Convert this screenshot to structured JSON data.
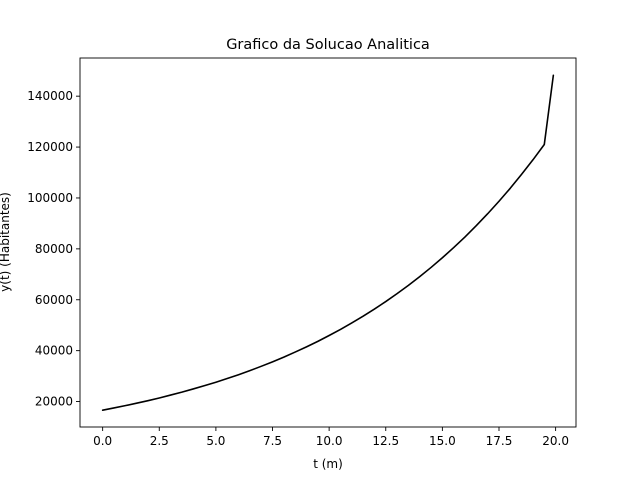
{
  "chart_data": {
    "type": "line",
    "title": "Grafico da Solucao Analitica",
    "xlabel": "t (m)",
    "ylabel": "y(t) (Habitantes)",
    "xlim": [
      -1.0,
      20.9
    ],
    "ylim": [
      10000,
      155000
    ],
    "xticks": [
      0.0,
      2.5,
      5.0,
      7.5,
      10.0,
      12.5,
      15.0,
      17.5,
      20.0
    ],
    "xtick_labels": [
      "0.0",
      "2.5",
      "5.0",
      "7.5",
      "10.0",
      "12.5",
      "15.0",
      "17.5",
      "20.0"
    ],
    "yticks": [
      20000,
      40000,
      60000,
      80000,
      100000,
      120000,
      140000
    ],
    "ytick_labels": [
      "20000",
      "40000",
      "60000",
      "80000",
      "100000",
      "120000",
      "140000"
    ],
    "grid": false,
    "colors": {
      "line": "#000000",
      "axes": "#000000",
      "background": "#ffffff"
    },
    "series": [
      {
        "x": [
          0.0,
          0.5,
          1.0,
          1.5,
          2.0,
          2.5,
          3.0,
          3.5,
          4.0,
          4.5,
          5.0,
          5.5,
          6.0,
          6.5,
          7.0,
          7.5,
          8.0,
          8.5,
          9.0,
          9.5,
          10.0,
          10.5,
          11.0,
          11.5,
          12.0,
          12.5,
          13.0,
          13.5,
          14.0,
          14.5,
          15.0,
          15.5,
          16.0,
          16.5,
          17.0,
          17.5,
          18.0,
          18.5,
          19.0,
          19.5,
          19.9
        ],
        "y": [
          16600,
          17500,
          18400,
          19350,
          20350,
          21400,
          22550,
          23700,
          24950,
          26250,
          27600,
          29050,
          30550,
          32150,
          33850,
          35600,
          37450,
          39450,
          41500,
          43650,
          45950,
          48350,
          50900,
          53550,
          56350,
          59300,
          62400,
          65650,
          69100,
          72700,
          76500,
          80500,
          84700,
          89150,
          93800,
          98700,
          103850,
          109300,
          115000,
          121000,
          148200
        ]
      }
    ]
  }
}
